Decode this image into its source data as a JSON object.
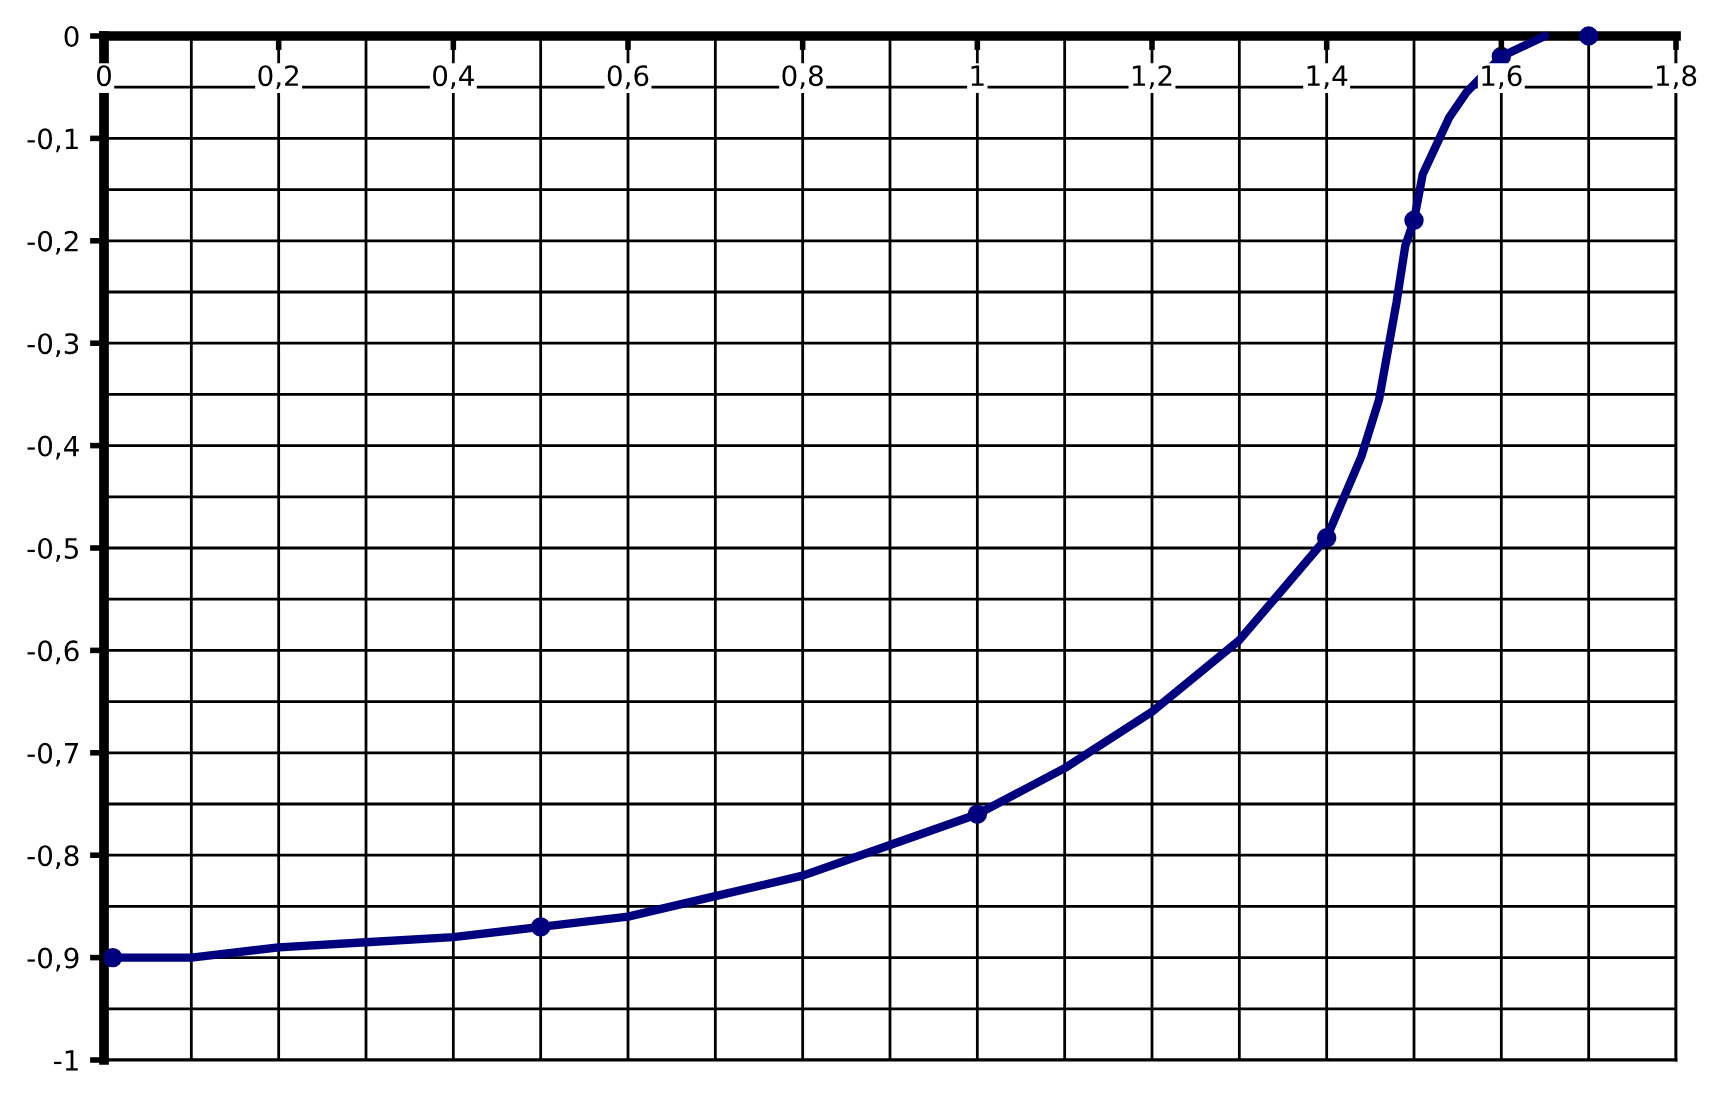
{
  "chart_data": {
    "type": "line",
    "x": [
      0.01,
      0.5,
      1.0,
      1.4,
      1.5,
      1.6,
      1.7
    ],
    "series": [
      {
        "color": "#00007f",
        "x": [
          0.01,
          0.1,
          0.2,
          0.3,
          0.4,
          0.5,
          0.6,
          0.7,
          0.8,
          0.9,
          1.0,
          1.1,
          1.2,
          1.3,
          1.34,
          1.4,
          1.42,
          1.44,
          1.46,
          1.48,
          1.49,
          1.5,
          1.51,
          1.54,
          1.56,
          1.6,
          1.65
        ],
        "values": [
          -0.9,
          -0.9,
          -0.89,
          -0.885,
          -0.88,
          -0.87,
          -0.86,
          -0.84,
          -0.82,
          -0.79,
          -0.76,
          -0.715,
          -0.66,
          -0.59,
          -0.55,
          -0.49,
          -0.45,
          -0.41,
          -0.355,
          -0.26,
          -0.205,
          -0.18,
          -0.135,
          -0.08,
          -0.055,
          -0.02,
          0
        ]
      },
      {
        "type": "scatter",
        "color": "#00007f",
        "values": [
          -0.9,
          -0.87,
          -0.76,
          -0.49,
          -0.18,
          -0.02,
          0
        ]
      }
    ],
    "xlim": [
      0,
      1.8
    ],
    "xticks": [
      0,
      {
        "value": 0.2,
        "label": "0,2"
      },
      {
        "value": 0.4,
        "label": "0,4"
      },
      {
        "value": 0.6,
        "label": "0,6"
      },
      {
        "value": 0.8,
        "label": "0,8"
      },
      1,
      {
        "value": 1.2,
        "label": "1,2"
      },
      {
        "value": 1.4,
        "label": "1,4"
      },
      {
        "value": 1.6,
        "label": "1,6"
      },
      {
        "value": 1.8,
        "label": "1,8"
      }
    ],
    "ylim": [
      -1,
      0
    ],
    "yticks": [
      -1,
      {
        "value": -0.9,
        "label": "-0,9"
      },
      {
        "value": -0.8,
        "label": "-0,8"
      },
      {
        "value": -0.7,
        "label": "-0,7"
      },
      {
        "value": -0.6,
        "label": "-0,6"
      },
      {
        "value": -0.5,
        "label": "-0,5"
      },
      {
        "value": -0.4,
        "label": "-0,4"
      },
      {
        "value": -0.3,
        "label": "-0,3"
      },
      {
        "value": -0.2,
        "label": "-0,2"
      },
      {
        "value": -0.1,
        "label": "-0,1"
      },
      0
    ],
    "grid": true,
    "line_style": "solid"
  }
}
